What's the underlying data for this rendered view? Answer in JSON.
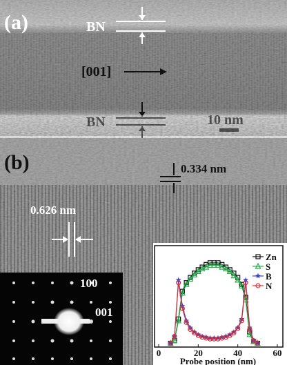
{
  "panels": [
    {
      "label": "(a)",
      "bn_top": "BN",
      "direction": "[001]",
      "bn_bottom": "BN",
      "scale": "10 nm"
    },
    {
      "label": "(b)",
      "spacing_1": "0.334 nm",
      "spacing_2": "0.626 nm",
      "saed_spot_1": "100",
      "saed_spot_2": "001"
    }
  ],
  "chart_data": {
    "type": "line",
    "xlabel": "Probe position (nm)",
    "x": [
      6,
      8,
      10,
      12,
      14,
      16,
      18,
      20,
      22,
      24,
      26,
      28,
      30,
      32,
      34,
      36,
      38,
      40,
      42,
      44,
      46,
      48,
      50
    ],
    "xlim": [
      0,
      60
    ],
    "xticks": [
      0,
      20,
      40,
      60
    ],
    "ylim": [
      0,
      1.1
    ],
    "legend": "upper right",
    "series": [
      {
        "name": "Zn",
        "color": "#111111",
        "marker": "square",
        "values": [
          0.02,
          0.05,
          0.3,
          0.62,
          0.72,
          0.78,
          0.83,
          0.87,
          0.9,
          0.93,
          0.95,
          0.95,
          0.95,
          0.93,
          0.9,
          0.87,
          0.83,
          0.78,
          0.7,
          0.55,
          0.15,
          0.04,
          0.02
        ]
      },
      {
        "name": "S",
        "color": "#22b04a",
        "marker": "triangle",
        "values": [
          0.02,
          0.05,
          0.28,
          0.6,
          0.7,
          0.76,
          0.81,
          0.85,
          0.88,
          0.9,
          0.92,
          0.92,
          0.92,
          0.9,
          0.88,
          0.85,
          0.8,
          0.75,
          0.68,
          0.52,
          0.12,
          0.04,
          0.02
        ]
      },
      {
        "name": "B",
        "color": "#3344cc",
        "marker": "star",
        "values": [
          0.02,
          0.1,
          0.75,
          0.45,
          0.28,
          0.2,
          0.15,
          0.12,
          0.1,
          0.09,
          0.08,
          0.08,
          0.08,
          0.09,
          0.1,
          0.12,
          0.15,
          0.2,
          0.3,
          0.75,
          0.2,
          0.05,
          0.02
        ]
      },
      {
        "name": "N",
        "color": "#e03030",
        "marker": "circle",
        "values": [
          0.02,
          0.1,
          0.72,
          0.42,
          0.26,
          0.18,
          0.14,
          0.11,
          0.09,
          0.08,
          0.07,
          0.07,
          0.07,
          0.08,
          0.09,
          0.11,
          0.14,
          0.19,
          0.28,
          0.72,
          0.18,
          0.05,
          0.02
        ]
      }
    ]
  }
}
